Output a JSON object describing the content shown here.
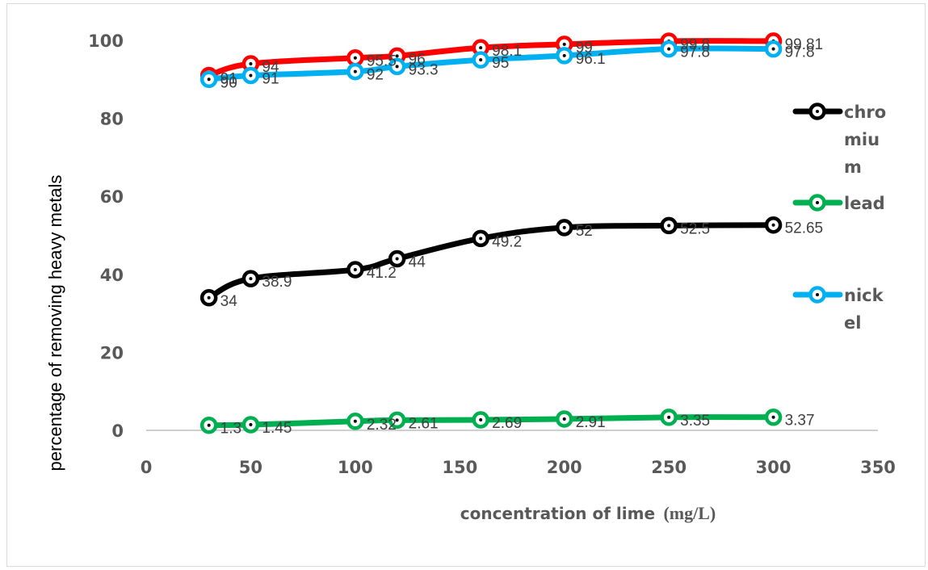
{
  "chart_data": {
    "type": "line",
    "title": "",
    "xlabel": "concentration of lime",
    "xlabel_unit": "(mg/L)",
    "ylabel": "percentage of removing heavy metals",
    "xlim": [
      0,
      350
    ],
    "ylim": [
      0,
      100
    ],
    "x_ticks": [
      "0",
      "50",
      "100",
      "150",
      "200",
      "250",
      "300",
      "350"
    ],
    "y_ticks": [
      "0",
      "20",
      "40",
      "60",
      "80",
      "100"
    ],
    "grid": false,
    "legend_position": "right",
    "x": [
      30,
      50,
      100,
      120,
      160,
      200,
      250,
      300
    ],
    "series": [
      {
        "name": "",
        "color": "#ff0000",
        "values": [
          91,
          94,
          95.5,
          96,
          98.1,
          99,
          99.8,
          99.81
        ],
        "labels": [
          "91",
          "94",
          "95.5",
          "96",
          "98.1",
          "99",
          "99.8",
          "99.81"
        ],
        "in_legend": false
      },
      {
        "name": "nickel",
        "legend_lines": [
          "nick",
          "el"
        ],
        "color": "#00b0f0",
        "values": [
          90,
          91,
          92,
          93.3,
          95,
          96.1,
          97.8,
          97.8
        ],
        "labels": [
          "90",
          "91",
          "92",
          "93.3",
          "95",
          "96.1",
          "97.8",
          "97.8"
        ],
        "in_legend": true
      },
      {
        "name": "chromium",
        "legend_lines": [
          "chro",
          "miu",
          "m"
        ],
        "color": "#000000",
        "values": [
          34,
          38.9,
          41.2,
          44,
          49.2,
          52,
          52.5,
          52.65
        ],
        "labels": [
          "34",
          "38.9",
          "41.2",
          "44",
          "49.2",
          "52",
          "52.5",
          "52.65"
        ],
        "in_legend": true
      },
      {
        "name": "lead",
        "legend_lines": [
          "lead"
        ],
        "color": "#00b050",
        "values": [
          1.3,
          1.45,
          2.32,
          2.61,
          2.69,
          2.91,
          3.35,
          3.37
        ],
        "labels": [
          "1.3",
          "1.45",
          "2.32",
          "2.61",
          "2.69",
          "2.91",
          "3.35",
          "3.37"
        ],
        "in_legend": true
      }
    ]
  }
}
